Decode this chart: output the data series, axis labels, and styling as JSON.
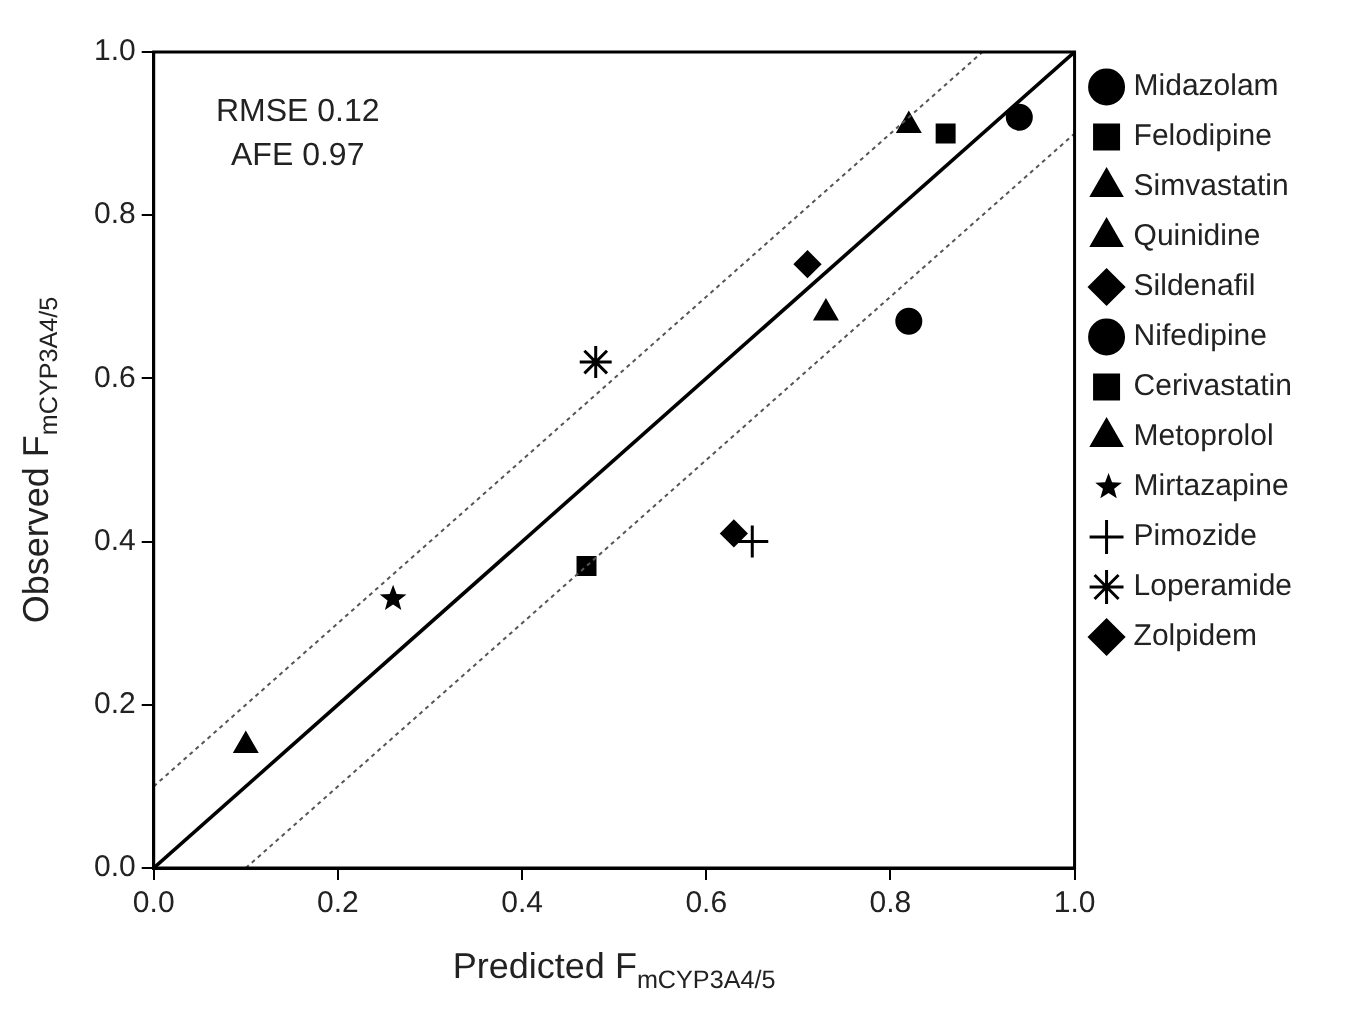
{
  "chart_data": {
    "type": "scatter",
    "xlabel": "Predicted F$_{mCYP3A4/5}$",
    "ylabel": "Observed F$_{mCYP3A4/5}$",
    "xlim": [
      0,
      1
    ],
    "ylim": [
      0,
      1
    ],
    "xticks": [
      {
        "value": 0,
        "label": "0.0"
      },
      {
        "value": 0.2,
        "label": "0.2"
      },
      {
        "value": 0.4,
        "label": "0.4"
      },
      {
        "value": 0.6,
        "label": "0.6"
      },
      {
        "value": 0.8,
        "label": "0.8"
      },
      {
        "value": 1,
        "label": "1.0"
      }
    ],
    "yticks": [
      {
        "value": 0,
        "label": "0.0"
      },
      {
        "value": 0.2,
        "label": "0.2"
      },
      {
        "value": 0.4,
        "label": "0.4"
      },
      {
        "value": 0.6,
        "label": "0.6"
      },
      {
        "value": 0.8,
        "label": "0.8"
      },
      {
        "value": 1,
        "label": "1.0"
      }
    ],
    "grid": false,
    "legend": "right",
    "annotations": [
      "RMSE 0.12",
      "AFE 0.97"
    ],
    "series": [
      {
        "name": "Midazolam",
        "color": "#000000",
        "marker": "circle",
        "x": [
          0.94
        ],
        "values": [
          0.92
        ]
      },
      {
        "name": "Felodipine",
        "color": "#000000",
        "marker": "square",
        "x": [
          0.86
        ],
        "values": [
          0.9
        ]
      },
      {
        "name": "Simvastatin",
        "color": "#000000",
        "marker": "triangle",
        "x": [
          0.82
        ],
        "values": [
          0.91
        ]
      },
      {
        "name": "Quinidine",
        "color": "#000000",
        "marker": "triangle",
        "x": [
          0.73
        ],
        "values": [
          0.68
        ]
      },
      {
        "name": "Sildenafil",
        "color": "#000000",
        "marker": "diamond",
        "x": [
          0.71
        ],
        "values": [
          0.74
        ]
      },
      {
        "name": "Nifedipine",
        "color": "#000000",
        "marker": "circle",
        "x": [
          0.82
        ],
        "values": [
          0.67
        ]
      },
      {
        "name": "Cerivastatin",
        "color": "#000000",
        "marker": "square",
        "x": [
          0.47
        ],
        "values": [
          0.37
        ]
      },
      {
        "name": "Metoprolol",
        "color": "#000000",
        "marker": "triangle",
        "x": [
          0.1
        ],
        "values": [
          0.15
        ]
      },
      {
        "name": "Mirtazapine",
        "color": "#000000",
        "marker": "star",
        "x": [
          0.26
        ],
        "values": [
          0.33
        ]
      },
      {
        "name": "Pimozide",
        "color": "#000000",
        "marker": "cross",
        "x": [
          0.65
        ],
        "values": [
          0.4
        ]
      },
      {
        "name": "Loperamide",
        "color": "#000000",
        "marker": "cross",
        "x": [
          0.48
        ],
        "values": [
          0.62
        ]
      },
      {
        "name": "Zolpidem",
        "color": "#000000",
        "marker": "diamond",
        "x": [
          0.63
        ],
        "values": [
          0.41
        ]
      },
      {
        "type": "line",
        "color": "#000000",
        "line_style": "solid",
        "x": [
          0,
          1
        ],
        "values": [
          0,
          1
        ]
      },
      {
        "type": "line",
        "color": "#555555",
        "line_style": "dotted",
        "x": [
          0,
          0.9
        ],
        "values": [
          0.1,
          1
        ]
      },
      {
        "type": "line",
        "color": "#555555",
        "line_style": "dotted",
        "x": [
          0.1,
          1
        ],
        "values": [
          0,
          0.9
        ]
      }
    ]
  }
}
